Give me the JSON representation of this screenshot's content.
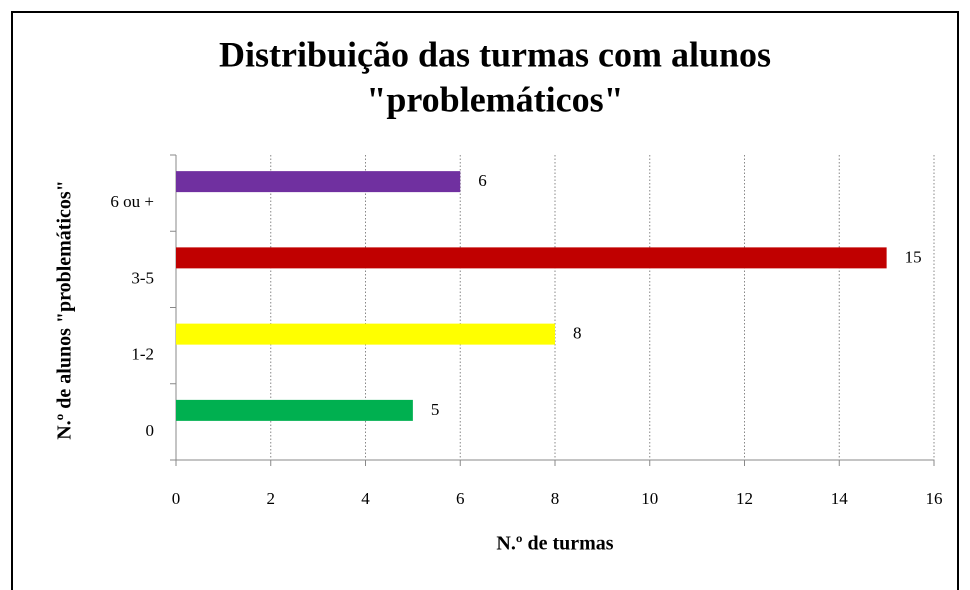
{
  "chart_data": {
    "type": "hbar",
    "title": [
      "Distribuição das turmas com alunos",
      "\"problemáticos\""
    ],
    "x_label": "N.º de turmas",
    "y_label": "N.º de alunos \"problemáticos\"",
    "categories": [
      "0",
      "1-2",
      "3-5",
      "6 ou +"
    ],
    "values": [
      5,
      8,
      15,
      6
    ],
    "colors": [
      "#00b050",
      "#ffff00",
      "#c00000",
      "#7030a0"
    ],
    "xlim": [
      0,
      16
    ],
    "xticks": [
      0,
      2,
      4,
      6,
      8,
      10,
      12,
      14,
      16
    ],
    "grid": true
  }
}
